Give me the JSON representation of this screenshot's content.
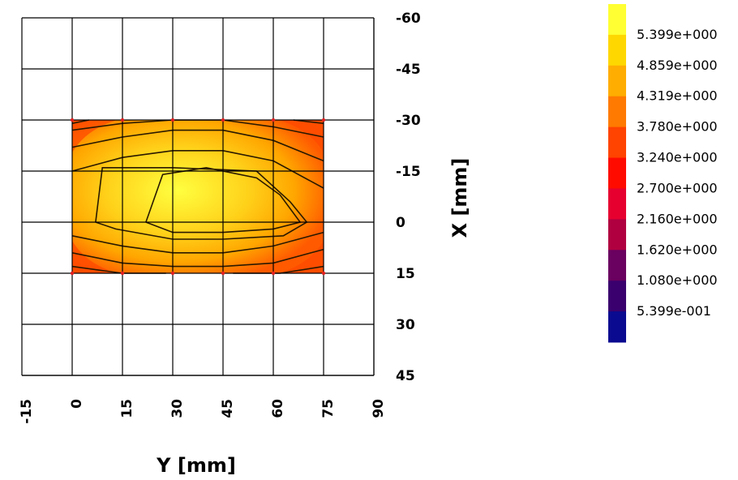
{
  "chart_data": {
    "type": "heatmap",
    "xlabel": "Y [mm]",
    "ylabel": "X [mm]",
    "x_ticks": [
      -15,
      0,
      15,
      30,
      45,
      60,
      75,
      90
    ],
    "x_tick_labels": [
      "-15",
      "0",
      "15",
      "30",
      "45",
      "60",
      "75",
      "90"
    ],
    "y_ticks": [
      -60,
      -45,
      -30,
      -15,
      0,
      15,
      30,
      45
    ],
    "y_tick_labels": [
      "-60",
      "-45",
      "-30",
      "-15",
      "0",
      "15",
      "30",
      "45"
    ],
    "xlim": [
      -15,
      90
    ],
    "ylim": [
      -60,
      45
    ],
    "y_axis_position": "right",
    "y_inverted": true,
    "grid": true,
    "data_extent": {
      "y_range": [
        0,
        75
      ],
      "x_range": [
        -30,
        15
      ]
    },
    "contour_levels": [
      5.399,
      4.859,
      4.319,
      3.78,
      3.24,
      2.7,
      2.16,
      1.62,
      1.08,
      0.5399
    ],
    "colorbar": {
      "placement": "right",
      "labels": [
        "5.399e+000",
        "4.859e+000",
        "4.319e+000",
        "3.780e+000",
        "3.240e+000",
        "2.700e+000",
        "2.160e+000",
        "1.620e+000",
        "1.080e+000",
        "5.399e-001"
      ],
      "colors": [
        "#ffff33",
        "#ffd700",
        "#ffad00",
        "#ff7a00",
        "#ff4300",
        "#ff0b00",
        "#e60030",
        "#b00040",
        "#6a0060",
        "#3a006e",
        "#0a0a90"
      ]
    },
    "peak_value": 5.6,
    "corner_values": {
      "top_left": 3.3,
      "top_right": 2.8,
      "bottom_left": 3.4,
      "bottom_right": 3.0
    }
  }
}
